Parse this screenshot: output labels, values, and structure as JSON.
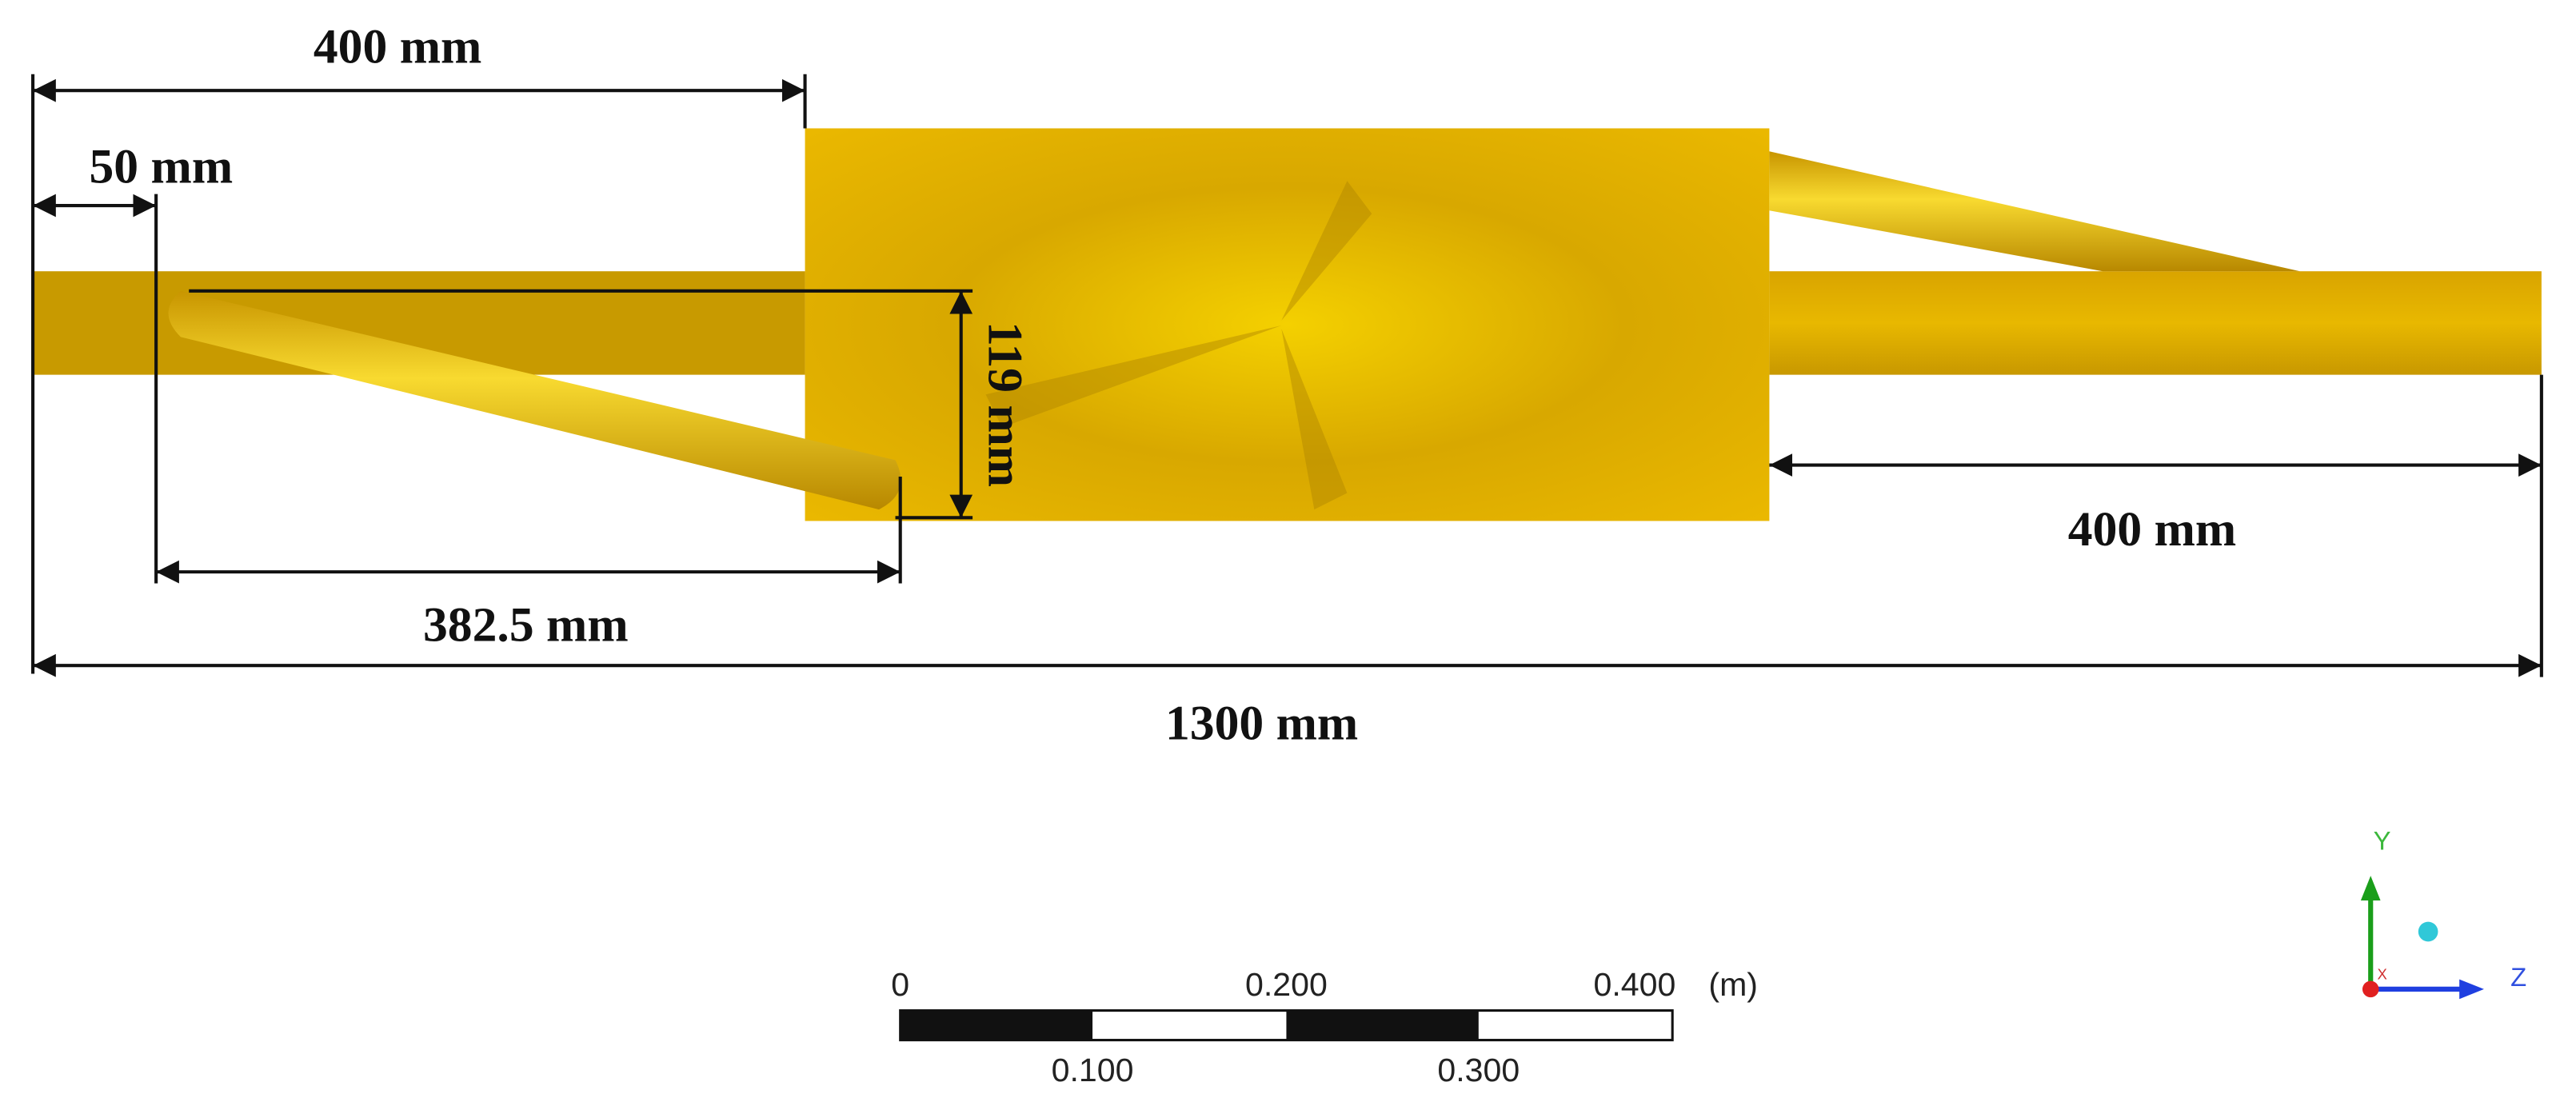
{
  "dimensions": {
    "inlet_length": "400 mm",
    "inner_pipe_offset": "50 mm",
    "inner_pipe_drop": "119 mm",
    "inner_pipe_length": "382.5 mm",
    "outlet_length": "400 mm",
    "total_length": "1300 mm"
  },
  "scale_bar": {
    "top_labels": [
      "0",
      "0.200",
      "0.400"
    ],
    "unit": "(m)",
    "bottom_labels": [
      "0.100",
      "0.300"
    ]
  },
  "axes": {
    "y": "Y",
    "z": "Z",
    "x": "X"
  }
}
